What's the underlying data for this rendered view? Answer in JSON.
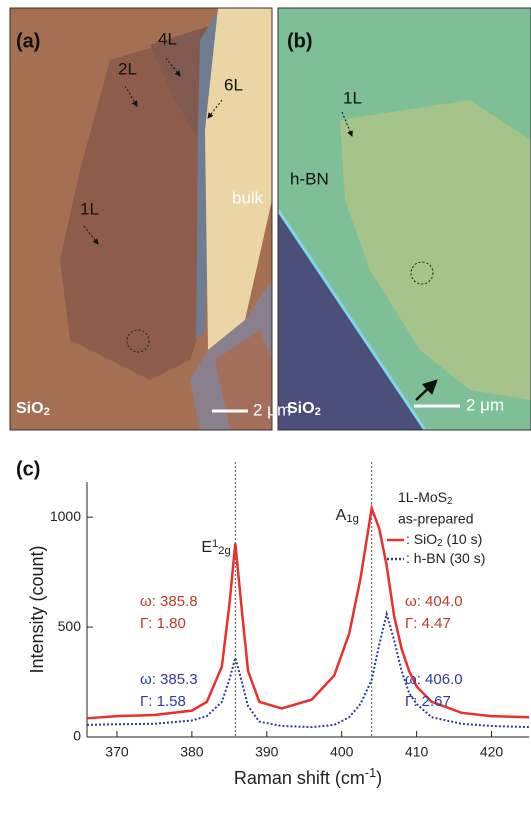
{
  "panels": [
    {
      "label": "(a)",
      "substrate": "SiO",
      "substrate_sub": "2",
      "scale": "2 μm",
      "annotations": [
        "4L",
        "2L",
        "6L",
        "bulk",
        "1L"
      ]
    },
    {
      "label": "(b)",
      "substrate": "SiO",
      "substrate_sub": "2",
      "scale": "2 μm",
      "annotations": [
        "1L",
        "h-BN"
      ]
    }
  ],
  "chart_data": {
    "type": "line",
    "panel_label": "(c)",
    "x_label": "Raman shift (cm",
    "x_label_sup": "-1",
    "x_label_end": ")",
    "y_label": "Intensity (count)",
    "xlim": [
      366,
      425
    ],
    "ylim": [
      0,
      1160
    ],
    "xticks": [
      370,
      380,
      390,
      400,
      410,
      420
    ],
    "yticks": [
      0,
      500,
      1000
    ],
    "x": [
      366,
      370,
      375,
      380,
      382,
      384,
      385,
      385.8,
      386.6,
      387.5,
      389,
      392,
      396,
      399,
      401,
      402.5,
      404,
      405,
      406,
      407,
      408,
      409,
      410,
      412,
      416,
      420,
      425
    ],
    "series": [
      {
        "name": ": SiO",
        "name_sub": "2",
        "name_end": " (10 s)",
        "color": "#e8302c",
        "style": "solid",
        "values": [
          85,
          95,
          100,
          120,
          160,
          320,
          600,
          880,
          600,
          300,
          160,
          130,
          170,
          280,
          470,
          720,
          1040,
          950,
          780,
          550,
          400,
          300,
          230,
          160,
          110,
          95,
          90
        ]
      },
      {
        "name": ": h-BN (30 s)",
        "color": "#2c3a9a",
        "style": "dotted",
        "values": [
          55,
          58,
          60,
          75,
          95,
          160,
          260,
          360,
          260,
          140,
          70,
          50,
          45,
          55,
          90,
          150,
          260,
          420,
          560,
          440,
          300,
          200,
          150,
          90,
          60,
          50,
          45
        ]
      }
    ],
    "peak_lines": [
      385.8,
      404.0
    ],
    "peaks": [
      {
        "name": "E",
        "sup": "1",
        "sub": "2g"
      },
      {
        "name": "A",
        "sub": "1g"
      }
    ],
    "legend_title": "1L-MoS",
    "legend_title_sub": "2",
    "legend_subtitle": "as-prepared",
    "fits": [
      {
        "color": "#c0392b",
        "lines": [
          "ω: 385.8",
          "Γ: 1.80"
        ]
      },
      {
        "color": "#2f3c9c",
        "lines": [
          "ω: 385.3",
          "Γ: 1.58"
        ]
      },
      {
        "color": "#c0392b",
        "lines": [
          "ω: 404.0",
          "Γ: 4.47"
        ]
      },
      {
        "color": "#2f3c9c",
        "lines": [
          "ω: 406.0",
          "Γ: 2.67"
        ]
      }
    ]
  }
}
